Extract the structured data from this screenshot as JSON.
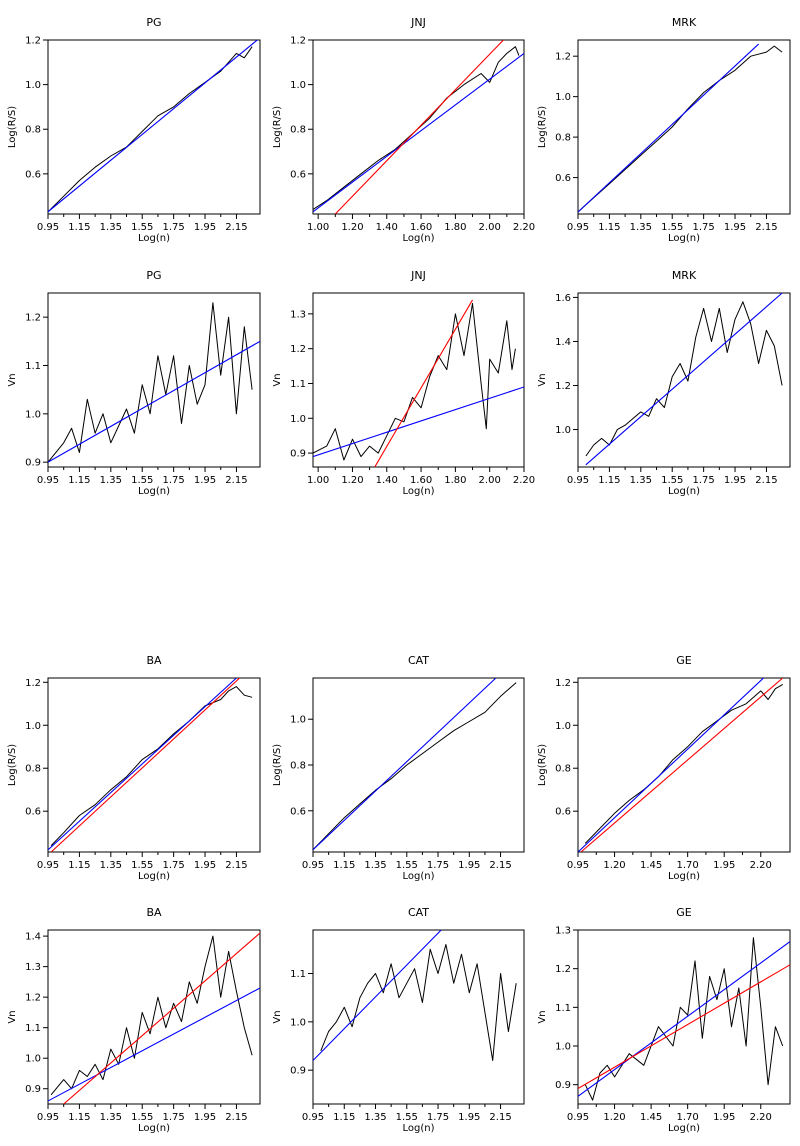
{
  "chart_data": [
    {
      "type": "line",
      "title": "PG",
      "xlabel": "Log(n)",
      "ylabel": "Log(R/S)",
      "xlim": [
        0.95,
        2.3
      ],
      "ylim": [
        0.42,
        1.2
      ],
      "xticks": [
        "0.95",
        "1.15",
        "1.35",
        "1.55",
        "1.75",
        "1.95",
        "2.15"
      ],
      "yticks": [
        "0.6",
        "0.8",
        "1.0",
        "1.2"
      ],
      "fits": [
        {
          "color": "#0000ff",
          "x": [
            0.95,
            2.3
          ],
          "y": [
            0.43,
            1.21
          ]
        }
      ],
      "series": [
        {
          "color": "#000000",
          "x": [
            0.95,
            1.05,
            1.15,
            1.25,
            1.35,
            1.45,
            1.55,
            1.65,
            1.75,
            1.85,
            1.95,
            2.05,
            2.15,
            2.2,
            2.25
          ],
          "y": [
            0.43,
            0.5,
            0.57,
            0.63,
            0.68,
            0.72,
            0.79,
            0.86,
            0.9,
            0.96,
            1.01,
            1.06,
            1.14,
            1.12,
            1.17
          ]
        }
      ]
    },
    {
      "type": "line",
      "title": "JNJ",
      "xlabel": "Log(n)",
      "ylabel": "Log(R/S)",
      "xlim": [
        0.97,
        2.2
      ],
      "ylim": [
        0.42,
        1.2
      ],
      "xticks": [
        "1.00",
        "1.20",
        "1.40",
        "1.60",
        "1.80",
        "2.00",
        "2.20"
      ],
      "yticks": [
        "0.6",
        "0.8",
        "1.0",
        "1.2"
      ],
      "fits": [
        {
          "color": "#0000ff",
          "x": [
            0.97,
            2.2
          ],
          "y": [
            0.43,
            1.14
          ]
        },
        {
          "color": "#ff0000",
          "x": [
            1.1,
            2.08
          ],
          "y": [
            0.42,
            1.2
          ]
        }
      ],
      "series": [
        {
          "color": "#000000",
          "x": [
            0.97,
            1.05,
            1.15,
            1.25,
            1.35,
            1.45,
            1.55,
            1.65,
            1.75,
            1.85,
            1.95,
            2.0,
            2.05,
            2.1,
            2.15,
            2.17
          ],
          "y": [
            0.44,
            0.48,
            0.54,
            0.6,
            0.66,
            0.71,
            0.78,
            0.85,
            0.94,
            1.0,
            1.05,
            1.01,
            1.1,
            1.14,
            1.17,
            1.13
          ]
        }
      ]
    },
    {
      "type": "line",
      "title": "MRK",
      "xlabel": "Log(n)",
      "ylabel": "Log(R/S)",
      "xlim": [
        0.95,
        2.3
      ],
      "ylim": [
        0.42,
        1.28
      ],
      "xticks": [
        "0.95",
        "1.15",
        "1.35",
        "1.55",
        "1.75",
        "1.95",
        "2.15"
      ],
      "yticks": [
        "0.6",
        "0.8",
        "1.0",
        "1.2"
      ],
      "fits": [
        {
          "color": "#0000ff",
          "x": [
            0.95,
            2.1
          ],
          "y": [
            0.43,
            1.26
          ]
        }
      ],
      "series": [
        {
          "color": "#000000",
          "x": [
            0.95,
            1.05,
            1.15,
            1.25,
            1.35,
            1.45,
            1.55,
            1.65,
            1.75,
            1.85,
            1.95,
            2.05,
            2.15,
            2.2,
            2.25
          ],
          "y": [
            0.43,
            0.5,
            0.57,
            0.64,
            0.71,
            0.78,
            0.85,
            0.94,
            1.02,
            1.08,
            1.13,
            1.2,
            1.22,
            1.25,
            1.22
          ]
        }
      ]
    },
    {
      "type": "line",
      "title": "PG",
      "xlabel": "Log(n)",
      "ylabel": "Vn",
      "xlim": [
        0.95,
        2.3
      ],
      "ylim": [
        0.89,
        1.25
      ],
      "xticks": [
        "0.95",
        "1.15",
        "1.35",
        "1.55",
        "1.75",
        "1.95",
        "2.15"
      ],
      "yticks": [
        "0.9",
        "1.0",
        "1.1",
        "1.2"
      ],
      "fits": [
        {
          "color": "#0000ff",
          "x": [
            0.95,
            2.3
          ],
          "y": [
            0.9,
            1.15
          ]
        }
      ],
      "series": [
        {
          "color": "#000000",
          "x": [
            0.95,
            1.05,
            1.1,
            1.15,
            1.2,
            1.25,
            1.3,
            1.35,
            1.45,
            1.5,
            1.55,
            1.6,
            1.65,
            1.7,
            1.75,
            1.8,
            1.85,
            1.9,
            1.95,
            2.0,
            2.05,
            2.1,
            2.15,
            2.2,
            2.25
          ],
          "y": [
            0.9,
            0.94,
            0.97,
            0.92,
            1.03,
            0.96,
            1.0,
            0.94,
            1.01,
            0.96,
            1.06,
            1.0,
            1.12,
            1.04,
            1.12,
            0.98,
            1.1,
            1.02,
            1.06,
            1.23,
            1.08,
            1.2,
            1.0,
            1.18,
            1.05
          ]
        }
      ]
    },
    {
      "type": "line",
      "title": "JNJ",
      "xlabel": "Log(n)",
      "ylabel": "Vn",
      "xlim": [
        0.97,
        2.2
      ],
      "ylim": [
        0.86,
        1.36
      ],
      "xticks": [
        "1.00",
        "1.20",
        "1.40",
        "1.60",
        "1.80",
        "2.00",
        "2.20"
      ],
      "yticks": [
        "0.9",
        "1.0",
        "1.1",
        "1.2",
        "1.3"
      ],
      "fits": [
        {
          "color": "#0000ff",
          "x": [
            0.97,
            2.2
          ],
          "y": [
            0.89,
            1.09
          ]
        },
        {
          "color": "#ff0000",
          "x": [
            1.33,
            1.9
          ],
          "y": [
            0.86,
            1.34
          ]
        }
      ],
      "series": [
        {
          "color": "#000000",
          "x": [
            0.97,
            1.05,
            1.1,
            1.15,
            1.2,
            1.25,
            1.3,
            1.35,
            1.4,
            1.45,
            1.5,
            1.55,
            1.6,
            1.65,
            1.7,
            1.75,
            1.8,
            1.85,
            1.9,
            1.95,
            1.98,
            2.0,
            2.05,
            2.1,
            2.13,
            2.15
          ],
          "y": [
            0.9,
            0.92,
            0.97,
            0.88,
            0.94,
            0.89,
            0.92,
            0.9,
            0.95,
            1.0,
            0.99,
            1.06,
            1.03,
            1.12,
            1.18,
            1.14,
            1.3,
            1.18,
            1.33,
            1.1,
            0.97,
            1.17,
            1.13,
            1.28,
            1.14,
            1.2
          ]
        }
      ]
    },
    {
      "type": "line",
      "title": "MRK",
      "xlabel": "Log(n)",
      "ylabel": "Vn",
      "xlim": [
        0.95,
        2.3
      ],
      "ylim": [
        0.83,
        1.62
      ],
      "xticks": [
        "0.95",
        "1.15",
        "1.35",
        "1.55",
        "1.75",
        "1.95",
        "2.15"
      ],
      "yticks": [
        "1.0",
        "1.2",
        "1.4",
        "1.6"
      ],
      "fits": [
        {
          "color": "#0000ff",
          "x": [
            1.0,
            2.25
          ],
          "y": [
            0.84,
            1.62
          ]
        }
      ],
      "series": [
        {
          "color": "#000000",
          "x": [
            1.0,
            1.05,
            1.1,
            1.15,
            1.2,
            1.25,
            1.3,
            1.35,
            1.4,
            1.45,
            1.5,
            1.55,
            1.6,
            1.65,
            1.7,
            1.75,
            1.8,
            1.85,
            1.9,
            1.95,
            2.0,
            2.05,
            2.1,
            2.15,
            2.2,
            2.25
          ],
          "y": [
            0.88,
            0.93,
            0.96,
            0.93,
            1.0,
            1.02,
            1.05,
            1.08,
            1.06,
            1.14,
            1.1,
            1.24,
            1.3,
            1.22,
            1.42,
            1.55,
            1.4,
            1.55,
            1.35,
            1.5,
            1.58,
            1.48,
            1.3,
            1.45,
            1.38,
            1.2
          ]
        }
      ]
    },
    {
      "type": "line",
      "title": "BA",
      "xlabel": "Log(n)",
      "ylabel": "Log(R/S)",
      "xlim": [
        0.95,
        2.3
      ],
      "ylim": [
        0.41,
        1.22
      ],
      "xticks": [
        "0.95",
        "1.15",
        "1.35",
        "1.55",
        "1.75",
        "1.95",
        "2.15"
      ],
      "yticks": [
        "0.6",
        "0.8",
        "1.0",
        "1.2"
      ],
      "fits": [
        {
          "color": "#0000ff",
          "x": [
            0.95,
            2.15
          ],
          "y": [
            0.42,
            1.22
          ]
        },
        {
          "color": "#ff0000",
          "x": [
            0.97,
            2.2
          ],
          "y": [
            0.41,
            1.24
          ]
        }
      ],
      "series": [
        {
          "color": "#000000",
          "x": [
            0.97,
            1.05,
            1.15,
            1.25,
            1.35,
            1.45,
            1.55,
            1.65,
            1.75,
            1.85,
            1.95,
            2.05,
            2.1,
            2.15,
            2.2,
            2.25
          ],
          "y": [
            0.44,
            0.5,
            0.58,
            0.63,
            0.7,
            0.76,
            0.84,
            0.89,
            0.96,
            1.02,
            1.09,
            1.12,
            1.16,
            1.18,
            1.14,
            1.13
          ]
        }
      ]
    },
    {
      "type": "line",
      "title": "CAT",
      "xlabel": "Log(n)",
      "ylabel": "Log(R/S)",
      "xlim": [
        0.95,
        2.3
      ],
      "ylim": [
        0.42,
        1.18
      ],
      "xticks": [
        "0.95",
        "1.15",
        "1.35",
        "1.55",
        "1.75",
        "1.95",
        "2.15"
      ],
      "yticks": [
        "0.6",
        "0.8",
        "1.0"
      ],
      "fits": [
        {
          "color": "#0000ff",
          "x": [
            0.95,
            2.12
          ],
          "y": [
            0.43,
            1.18
          ]
        }
      ],
      "series": [
        {
          "color": "#000000",
          "x": [
            0.95,
            1.05,
            1.15,
            1.25,
            1.35,
            1.45,
            1.55,
            1.65,
            1.75,
            1.85,
            1.95,
            2.05,
            2.15,
            2.2,
            2.25
          ],
          "y": [
            0.43,
            0.5,
            0.57,
            0.63,
            0.69,
            0.74,
            0.8,
            0.85,
            0.9,
            0.95,
            0.99,
            1.03,
            1.1,
            1.13,
            1.16
          ]
        }
      ]
    },
    {
      "type": "line",
      "title": "GE",
      "xlabel": "Log(n)",
      "ylabel": "Log(R/S)",
      "xlim": [
        0.95,
        2.4
      ],
      "ylim": [
        0.41,
        1.22
      ],
      "xticks": [
        "0.95",
        "1.20",
        "1.45",
        "1.70",
        "1.95",
        "2.20"
      ],
      "yticks": [
        "0.6",
        "0.8",
        "1.0",
        "1.2"
      ],
      "fits": [
        {
          "color": "#0000ff",
          "x": [
            0.95,
            2.25
          ],
          "y": [
            0.41,
            1.24
          ]
        },
        {
          "color": "#ff0000",
          "x": [
            0.97,
            2.35
          ],
          "y": [
            0.41,
            1.22
          ]
        }
      ],
      "series": [
        {
          "color": "#000000",
          "x": [
            1.0,
            1.1,
            1.2,
            1.3,
            1.4,
            1.5,
            1.6,
            1.7,
            1.8,
            1.9,
            2.0,
            2.1,
            2.2,
            2.25,
            2.3,
            2.35
          ],
          "y": [
            0.45,
            0.52,
            0.59,
            0.65,
            0.7,
            0.76,
            0.84,
            0.9,
            0.97,
            1.02,
            1.07,
            1.1,
            1.16,
            1.12,
            1.17,
            1.19
          ]
        }
      ]
    },
    {
      "type": "line",
      "title": "BA",
      "xlabel": "Log(n)",
      "ylabel": "Vn",
      "xlim": [
        0.95,
        2.3
      ],
      "ylim": [
        0.85,
        1.42
      ],
      "xticks": [
        "0.95",
        "1.15",
        "1.35",
        "1.55",
        "1.75",
        "1.95",
        "2.15"
      ],
      "yticks": [
        "0.9",
        "1.0",
        "1.1",
        "1.2",
        "1.3",
        "1.4"
      ],
      "fits": [
        {
          "color": "#0000ff",
          "x": [
            0.95,
            2.3
          ],
          "y": [
            0.86,
            1.23
          ]
        },
        {
          "color": "#ff0000",
          "x": [
            1.05,
            2.3
          ],
          "y": [
            0.85,
            1.41
          ]
        }
      ],
      "series": [
        {
          "color": "#000000",
          "x": [
            0.97,
            1.05,
            1.1,
            1.15,
            1.2,
            1.25,
            1.3,
            1.35,
            1.4,
            1.45,
            1.5,
            1.55,
            1.6,
            1.65,
            1.7,
            1.75,
            1.8,
            1.85,
            1.9,
            1.95,
            2.0,
            2.05,
            2.1,
            2.15,
            2.2,
            2.25
          ],
          "y": [
            0.88,
            0.93,
            0.9,
            0.96,
            0.94,
            0.98,
            0.93,
            1.03,
            0.98,
            1.1,
            1.0,
            1.15,
            1.08,
            1.2,
            1.1,
            1.18,
            1.12,
            1.25,
            1.18,
            1.3,
            1.4,
            1.2,
            1.35,
            1.22,
            1.1,
            1.01
          ]
        }
      ]
    },
    {
      "type": "line",
      "title": "CAT",
      "xlabel": "Log(n)",
      "ylabel": "Vn",
      "xlim": [
        0.95,
        2.3
      ],
      "ylim": [
        0.83,
        1.19
      ],
      "xticks": [
        "0.95",
        "1.15",
        "1.35",
        "1.55",
        "1.75",
        "1.95",
        "2.15"
      ],
      "yticks": [
        "0.9",
        "1.0",
        "1.1"
      ],
      "fits": [
        {
          "color": "#0000ff",
          "x": [
            0.95,
            1.77
          ],
          "y": [
            0.92,
            1.19
          ]
        }
      ],
      "series": [
        {
          "color": "#000000",
          "x": [
            1.0,
            1.05,
            1.1,
            1.15,
            1.2,
            1.25,
            1.3,
            1.35,
            1.4,
            1.45,
            1.5,
            1.55,
            1.6,
            1.65,
            1.7,
            1.75,
            1.8,
            1.85,
            1.9,
            1.95,
            2.0,
            2.05,
            2.1,
            2.15,
            2.2,
            2.25
          ],
          "y": [
            0.94,
            0.98,
            1.0,
            1.03,
            0.99,
            1.05,
            1.08,
            1.1,
            1.06,
            1.12,
            1.05,
            1.08,
            1.11,
            1.04,
            1.15,
            1.1,
            1.16,
            1.08,
            1.14,
            1.06,
            1.12,
            1.02,
            0.92,
            1.1,
            0.98,
            1.08
          ]
        }
      ]
    },
    {
      "type": "line",
      "title": "GE",
      "xlabel": "Log(n)",
      "ylabel": "Vn",
      "xlim": [
        0.95,
        2.4
      ],
      "ylim": [
        0.85,
        1.3
      ],
      "xticks": [
        "0.95",
        "1.20",
        "1.45",
        "1.70",
        "1.95",
        "2.20"
      ],
      "yticks": [
        "0.9",
        "1.0",
        "1.1",
        "1.2",
        "1.3"
      ],
      "fits": [
        {
          "color": "#0000ff",
          "x": [
            0.95,
            2.4
          ],
          "y": [
            0.87,
            1.27
          ]
        },
        {
          "color": "#ff0000",
          "x": [
            0.95,
            2.4
          ],
          "y": [
            0.89,
            1.21
          ]
        }
      ],
      "series": [
        {
          "color": "#000000",
          "x": [
            1.0,
            1.05,
            1.1,
            1.15,
            1.2,
            1.3,
            1.4,
            1.5,
            1.6,
            1.65,
            1.7,
            1.75,
            1.8,
            1.85,
            1.9,
            1.95,
            2.0,
            2.05,
            2.1,
            2.15,
            2.2,
            2.25,
            2.3,
            2.35
          ],
          "y": [
            0.9,
            0.86,
            0.93,
            0.95,
            0.92,
            0.98,
            0.95,
            1.05,
            1.0,
            1.1,
            1.08,
            1.22,
            1.02,
            1.18,
            1.12,
            1.2,
            1.05,
            1.15,
            1.0,
            1.28,
            1.1,
            0.9,
            1.05,
            1.0
          ]
        }
      ]
    }
  ]
}
